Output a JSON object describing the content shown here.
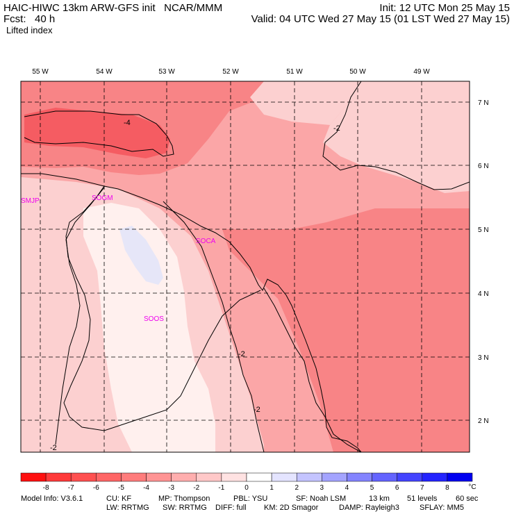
{
  "header": {
    "model_title": "HAIC-HIWC 13km ARW-GFS init   NCAR/MMM",
    "init_time": "Init: 12 UTC Mon 25 May 15",
    "forecast": "Fcst:   40 h",
    "valid_time": "Valid: 04 UTC Wed 27 May 15 (01 LST Wed 27 May 15)",
    "field_name": "Lifted index"
  },
  "map": {
    "longitude_labels": [
      "55 W",
      "54 W",
      "53 W",
      "52 W",
      "51 W",
      "50 W",
      "49 W"
    ],
    "latitude_labels": [
      "7 N",
      "6 N",
      "5 N",
      "4 N",
      "3 N",
      "2 N"
    ],
    "stations": [
      "SMJP",
      "SOGM",
      "SOCA",
      "SOOS"
    ],
    "contour_labels": [
      "-4",
      "-2",
      "-2",
      "-2",
      "-2"
    ],
    "station_color": "#ee00ee",
    "colors": {
      "deep": "#f55c62",
      "strong": "#f88486",
      "mid": "#fba6a7",
      "light": "#fcd0d0",
      "pale": "#fff0ee",
      "faint_blue": "#e6e6f8"
    }
  },
  "colorbar": {
    "tick_labels": [
      "-8",
      "-7",
      "-6",
      "-5",
      "-4",
      "-3",
      "-2",
      "-1",
      "0",
      "1",
      "2",
      "3",
      "4",
      "5",
      "6",
      "7",
      "8"
    ],
    "unit": "°C",
    "colors": [
      "#ff1010",
      "#ff3a3a",
      "#ff5050",
      "#ff6666",
      "#ff7c7c",
      "#ff9494",
      "#ffaeae",
      "#ffc8c8",
      "#ffe2e2",
      "#ffffff",
      "#e4e4ff",
      "#c4c4ff",
      "#a4a4ff",
      "#8484ff",
      "#6464ff",
      "#4444ff",
      "#2424ff",
      "#0000f0"
    ]
  },
  "footer": {
    "model_info": "Model Info: V3.6.1",
    "cu": "CU: KF",
    "mp": "MP: Thompson",
    "pbl": "PBL: YSU",
    "sf": "SF: Noah LSM",
    "grid": "13 km",
    "levels": "51 levels",
    "timestep": "60 sec",
    "lw": "LW: RRTMG",
    "sw": "SW: RRTMG",
    "diff": "DIFF: full",
    "km": "KM: 2D Smagor",
    "damp": "DAMP: Rayleigh3",
    "sflay": "SFLAY: MM5"
  }
}
